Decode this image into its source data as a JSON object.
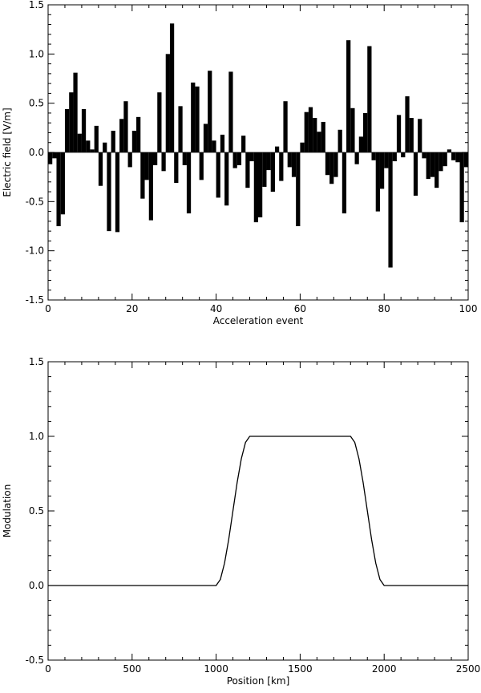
{
  "chart_data": [
    {
      "type": "bar",
      "title": "",
      "xlabel": "Acceleration event",
      "ylabel": "Electric field  [V/m]",
      "xlim": [
        0,
        100
      ],
      "ylim": [
        -1.5,
        1.5
      ],
      "xticks": [
        0,
        20,
        40,
        60,
        80,
        100
      ],
      "yticks": [
        -1.5,
        -1.0,
        -0.5,
        0.0,
        0.5,
        1.0,
        1.5
      ],
      "x": [
        1,
        2,
        3,
        4,
        5,
        6,
        7,
        8,
        9,
        10,
        11,
        12,
        13,
        14,
        15,
        16,
        17,
        18,
        19,
        20,
        21,
        22,
        23,
        24,
        25,
        26,
        27,
        28,
        29,
        30,
        31,
        32,
        33,
        34,
        35,
        36,
        37,
        38,
        39,
        40,
        41,
        42,
        43,
        44,
        45,
        46,
        47,
        48,
        49,
        50,
        51,
        52,
        53,
        54,
        55,
        56,
        57,
        58,
        59,
        60,
        61,
        62,
        63,
        64,
        65,
        66,
        67,
        68,
        69,
        70,
        71,
        72,
        73,
        74,
        75,
        76,
        77,
        78,
        79,
        80,
        81,
        82,
        83,
        84,
        85,
        86,
        87,
        88,
        89,
        90,
        91,
        92,
        93,
        94,
        95,
        96,
        97,
        98,
        99,
        100
      ],
      "values": [
        -0.12,
        -0.06,
        -0.75,
        -0.63,
        0.44,
        0.61,
        0.81,
        0.19,
        0.44,
        0.12,
        0.03,
        0.27,
        -0.34,
        0.1,
        -0.8,
        0.22,
        -0.81,
        0.34,
        0.52,
        -0.15,
        0.22,
        0.36,
        -0.47,
        -0.28,
        -0.69,
        -0.13,
        0.61,
        -0.19,
        1.0,
        1.31,
        -0.31,
        0.47,
        -0.13,
        -0.62,
        0.71,
        0.67,
        -0.28,
        0.29,
        0.83,
        0.12,
        -0.46,
        0.18,
        -0.54,
        0.82,
        -0.16,
        -0.13,
        0.17,
        -0.36,
        -0.09,
        -0.71,
        -0.66,
        -0.35,
        -0.18,
        -0.4,
        0.06,
        -0.29,
        0.52,
        -0.15,
        -0.25,
        -0.75,
        0.1,
        0.41,
        0.46,
        0.35,
        0.21,
        0.31,
        -0.23,
        -0.32,
        -0.25,
        0.23,
        -0.62,
        1.14,
        0.45,
        -0.12,
        0.16,
        0.4,
        1.08,
        -0.08,
        -0.6,
        -0.37,
        -0.16,
        -1.17,
        -0.09,
        0.38,
        -0.05,
        0.57,
        0.35,
        -0.44,
        0.34,
        -0.06,
        -0.27,
        -0.25,
        -0.36,
        -0.19,
        -0.14,
        0.03,
        -0.08,
        -0.1,
        -0.71,
        -0.15
      ]
    },
    {
      "type": "line",
      "title": "",
      "xlabel": "Position  [km]",
      "ylabel": "Modulation",
      "xlim": [
        0,
        2500
      ],
      "ylim": [
        -0.5,
        1.5
      ],
      "xticks": [
        0,
        500,
        1000,
        1500,
        2000,
        2500
      ],
      "yticks": [
        -0.5,
        0.0,
        0.5,
        1.0,
        1.5
      ],
      "series": [
        {
          "x": [
            0,
            1000,
            1025,
            1050,
            1075,
            1100,
            1125,
            1150,
            1175,
            1200,
            1800,
            1825,
            1850,
            1875,
            1900,
            1925,
            1950,
            1975,
            2000,
            2500
          ],
          "values": [
            0.0,
            0.0,
            0.04,
            0.15,
            0.31,
            0.5,
            0.69,
            0.85,
            0.96,
            1.0,
            1.0,
            0.96,
            0.85,
            0.69,
            0.5,
            0.31,
            0.15,
            0.04,
            0.0,
            0.0
          ]
        }
      ]
    }
  ]
}
